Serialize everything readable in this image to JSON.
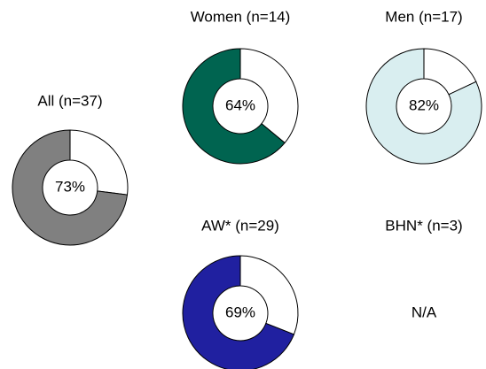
{
  "chart_data": [
    {
      "type": "donut",
      "title": "All (n=37)",
      "values": [
        73
      ],
      "value_labels": [
        "73%"
      ],
      "color": "#808080"
    },
    {
      "type": "donut",
      "title": "Women (n=14)",
      "values": [
        64
      ],
      "value_labels": [
        "64%"
      ],
      "color": "#006450"
    },
    {
      "type": "donut",
      "title": "Men (n=17)",
      "values": [
        82
      ],
      "value_labels": [
        "82%"
      ],
      "color": "#d9eef0"
    },
    {
      "type": "donut",
      "title": "AW* (n=29)",
      "values": [
        69
      ],
      "value_labels": [
        "69%"
      ],
      "color": "#2020a0"
    },
    {
      "type": "donut",
      "title": "BHN* (n=3)",
      "values": [
        null
      ],
      "value_labels": [
        "N/A"
      ],
      "color": "#808080"
    }
  ]
}
